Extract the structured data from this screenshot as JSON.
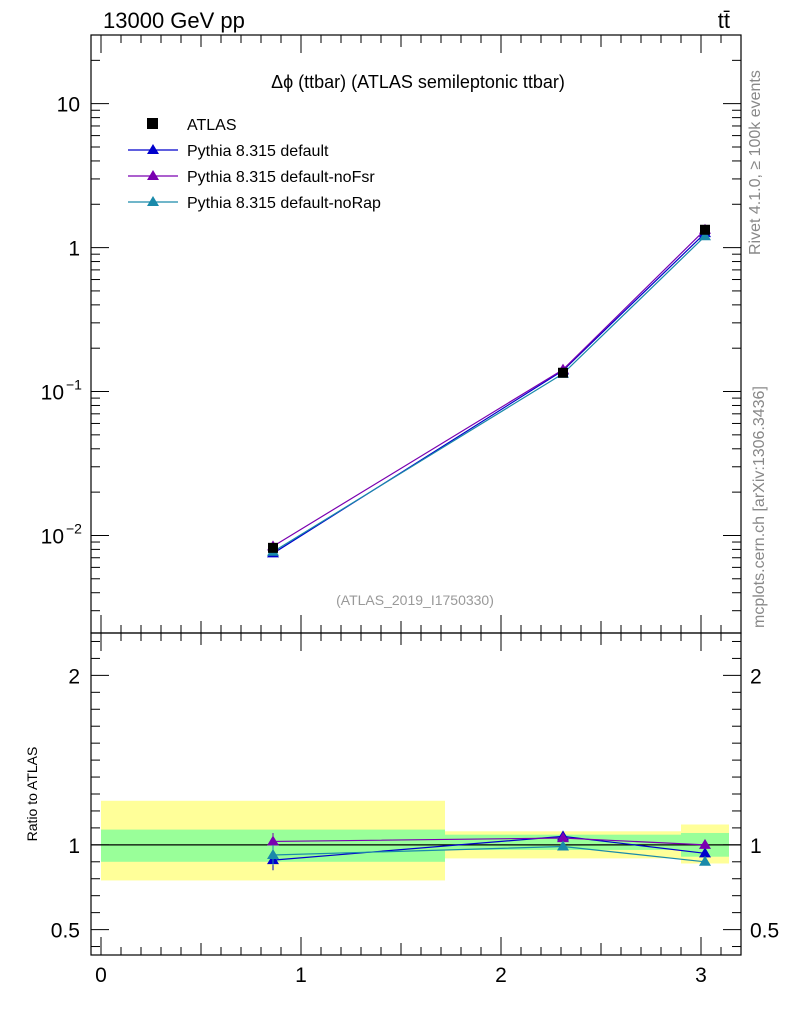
{
  "header": {
    "left_label": "13000 GeV pp",
    "right_label": "tt̄"
  },
  "side_labels": {
    "rivet": "Rivet 4.1.0, ≥ 100k events",
    "mcplots": "mcplots.cern.ch [arXiv:1306.3436]"
  },
  "chart_data": {
    "type": "line",
    "title": "Δϕ (ttbar) (ATLAS semileptonic ttbar)",
    "watermark": "(ATLAS_2019_I1750330)",
    "xlabel": "",
    "ylabel": "",
    "xlim": [
      -0.05,
      3.2
    ],
    "ylim_log": [
      0.0021,
      30
    ],
    "x_ticks": [
      "0",
      "1",
      "2",
      "3"
    ],
    "y_ticks": [
      {
        "value": 0.01,
        "label": "10",
        "exp": "−2"
      },
      {
        "value": 0.1,
        "label": "10",
        "exp": "−1"
      },
      {
        "value": 1,
        "label": "1",
        "exp": ""
      },
      {
        "value": 10,
        "label": "10",
        "exp": ""
      }
    ],
    "legend_position": "top-left",
    "bins": [
      {
        "lo": 0,
        "hi": 1.72,
        "x": 0.86
      },
      {
        "lo": 1.72,
        "hi": 2.9,
        "x": 2.31
      },
      {
        "lo": 2.9,
        "hi": 3.14,
        "x": 3.02
      }
    ],
    "reference": {
      "name": "ATLAS",
      "color": "#000000",
      "marker": "square",
      "values": [
        0.0082,
        0.135,
        1.33
      ]
    },
    "series": [
      {
        "name": "Pythia 8.315 default",
        "color": "#0000cc",
        "marker": "triangle",
        "values": [
          0.0075,
          0.14,
          1.26
        ]
      },
      {
        "name": "Pythia 8.315 default-noFsr",
        "color": "#7a00b0",
        "marker": "triangle",
        "values": [
          0.0084,
          0.142,
          1.33
        ]
      },
      {
        "name": "Pythia 8.315 default-noRap",
        "color": "#1a8aaa",
        "marker": "triangle",
        "values": [
          0.0077,
          0.133,
          1.2
        ]
      }
    ],
    "ratio": {
      "ylabel": "Ratio to ATLAS",
      "ylim": [
        0.35,
        2.25
      ],
      "y_ticks": [
        "0.5",
        "1",
        "2"
      ],
      "band_inner": [
        [
          0.9,
          1.09
        ],
        [
          0.97,
          1.06
        ],
        [
          0.93,
          1.07
        ]
      ],
      "band_outer": [
        [
          0.79,
          1.26
        ],
        [
          0.92,
          1.08
        ],
        [
          0.89,
          1.12
        ]
      ],
      "series_values": [
        [
          0.91,
          1.05,
          0.95
        ],
        [
          1.02,
          1.04,
          1.0
        ],
        [
          0.94,
          0.99,
          0.9
        ]
      ],
      "error_bars": [
        [
          0.85,
          0.97
        ],
        [
          0.97,
          1.07
        ],
        [
          0.88,
          1.0
        ]
      ]
    },
    "colors": {
      "band_outer": "#ffff99",
      "band_inner": "#99ff99"
    }
  }
}
